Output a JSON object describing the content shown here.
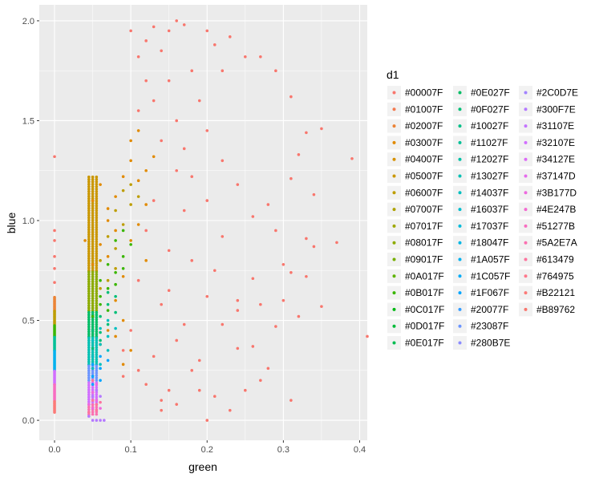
{
  "chart_data": {
    "type": "scatter",
    "title": "",
    "xlabel": "green",
    "ylabel": "blue",
    "xlim": [
      -0.02,
      0.41
    ],
    "ylim": [
      -0.1,
      2.08
    ],
    "x_ticks": [
      "0.0",
      "0.1",
      "0.2",
      "0.3",
      "0.4"
    ],
    "x_tick_values": [
      0.0,
      0.1,
      0.2,
      0.3,
      0.4
    ],
    "y_ticks": [
      "0.0",
      "0.5",
      "1.0",
      "1.5",
      "2.0"
    ],
    "y_tick_values": [
      0.0,
      0.5,
      1.0,
      1.5,
      2.0
    ],
    "grid": true,
    "panel_background": "#EBEBEB",
    "grid_color": "#FFFFFF",
    "legend": {
      "title": "d1",
      "placement": "right",
      "columns": 3,
      "entries": [
        {
          "label": "#00007F",
          "color": "#F8766D"
        },
        {
          "label": "#01007F",
          "color": "#F47A50"
        },
        {
          "label": "#02007F",
          "color": "#EB8335"
        },
        {
          "label": "#03007F",
          "color": "#E18A00"
        },
        {
          "label": "#04007F",
          "color": "#D69100"
        },
        {
          "label": "#05007F",
          "color": "#CA9700"
        },
        {
          "label": "#06007F",
          "color": "#BD9D00"
        },
        {
          "label": "#07007F",
          "color": "#AEA200"
        },
        {
          "label": "#07017F",
          "color": "#9EA700"
        },
        {
          "label": "#08017F",
          "color": "#8CAB00"
        },
        {
          "label": "#09017F",
          "color": "#77AF00"
        },
        {
          "label": "#0A017F",
          "color": "#5EB300"
        },
        {
          "label": "#0B017F",
          "color": "#39B600"
        },
        {
          "label": "#0C017F",
          "color": "#00B813"
        },
        {
          "label": "#0D017F",
          "color": "#00BA38"
        },
        {
          "label": "#0E017F",
          "color": "#00BC51"
        },
        {
          "label": "#0E027F",
          "color": "#00BD65"
        },
        {
          "label": "#0F027F",
          "color": "#00BE77"
        },
        {
          "label": "#10027F",
          "color": "#00BF87"
        },
        {
          "label": "#11027F",
          "color": "#00C097"
        },
        {
          "label": "#12027F",
          "color": "#00C0A5"
        },
        {
          "label": "#13027F",
          "color": "#00C0B3"
        },
        {
          "label": "#14037F",
          "color": "#00BFC0"
        },
        {
          "label": "#16037F",
          "color": "#00BDCD"
        },
        {
          "label": "#17037F",
          "color": "#00BAD9"
        },
        {
          "label": "#18047F",
          "color": "#00B6E4"
        },
        {
          "label": "#1A057F",
          "color": "#00B1EE"
        },
        {
          "label": "#1C057F",
          "color": "#00ABF7"
        },
        {
          "label": "#1F067F",
          "color": "#00A5FF"
        },
        {
          "label": "#20077F",
          "color": "#359DFF"
        },
        {
          "label": "#23087F",
          "color": "#6B95FF"
        },
        {
          "label": "#280B7E",
          "color": "#8B8CFF"
        },
        {
          "label": "#2C0D7E",
          "color": "#A282FF"
        },
        {
          "label": "#300F7E",
          "color": "#B57AFF"
        },
        {
          "label": "#31107E",
          "color": "#C473FF"
        },
        {
          "label": "#32107E",
          "color": "#D16EFF"
        },
        {
          "label": "#34127E",
          "color": "#DC6BF6"
        },
        {
          "label": "#37147D",
          "color": "#E56AEC"
        },
        {
          "label": "#3B177D",
          "color": "#ED69DF"
        },
        {
          "label": "#4E247B",
          "color": "#F36AD1"
        },
        {
          "label": "#51277B",
          "color": "#F86DC1"
        },
        {
          "label": "#5A2E7A",
          "color": "#FB70B0"
        },
        {
          "label": "#613479",
          "color": "#FD749E"
        },
        {
          "label": "#764975",
          "color": "#FE778B"
        },
        {
          "label": "#B22121",
          "color": "#FC7A78"
        },
        {
          "label": "#B89762",
          "color": "#F8766D"
        }
      ]
    },
    "series": [
      {
        "label": "#00007F",
        "points": [
          [
            0.0,
            1.32
          ],
          [
            0.0,
            0.95
          ],
          [
            0.0,
            0.9
          ],
          [
            0.0,
            0.82
          ],
          [
            0.0,
            0.76
          ],
          [
            0.0,
            0.69
          ],
          [
            0.09,
            0.22
          ],
          [
            0.1,
            1.95
          ],
          [
            0.11,
            1.82
          ],
          [
            0.12,
            1.9
          ],
          [
            0.13,
            1.97
          ],
          [
            0.14,
            1.85
          ],
          [
            0.15,
            1.95
          ],
          [
            0.16,
            2.0
          ],
          [
            0.17,
            1.98
          ],
          [
            0.2,
            1.95
          ],
          [
            0.21,
            1.88
          ],
          [
            0.23,
            1.92
          ],
          [
            0.22,
            1.75
          ],
          [
            0.25,
            1.82
          ],
          [
            0.27,
            1.82
          ],
          [
            0.29,
            1.75
          ],
          [
            0.31,
            1.62
          ],
          [
            0.33,
            1.44
          ],
          [
            0.35,
            1.46
          ],
          [
            0.32,
            1.33
          ],
          [
            0.31,
            1.21
          ],
          [
            0.34,
            1.13
          ],
          [
            0.39,
            1.31
          ],
          [
            0.24,
            1.18
          ],
          [
            0.26,
            1.02
          ],
          [
            0.28,
            1.08
          ],
          [
            0.33,
            0.91
          ],
          [
            0.34,
            0.87
          ],
          [
            0.37,
            0.89
          ],
          [
            0.33,
            0.72
          ],
          [
            0.3,
            0.78
          ],
          [
            0.31,
            0.74
          ],
          [
            0.35,
            0.57
          ],
          [
            0.32,
            0.52
          ],
          [
            0.27,
            0.58
          ],
          [
            0.29,
            0.47
          ],
          [
            0.24,
            0.55
          ],
          [
            0.24,
            0.36
          ],
          [
            0.26,
            0.37
          ],
          [
            0.28,
            0.26
          ],
          [
            0.25,
            0.15
          ],
          [
            0.2,
            0.0
          ],
          [
            0.21,
            0.12
          ],
          [
            0.18,
            0.25
          ],
          [
            0.17,
            0.48
          ],
          [
            0.15,
            0.65
          ],
          [
            0.2,
            0.62
          ],
          [
            0.18,
            0.8
          ],
          [
            0.22,
            0.92
          ],
          [
            0.2,
            1.1
          ],
          [
            0.18,
            1.22
          ],
          [
            0.17,
            1.36
          ],
          [
            0.16,
            1.5
          ],
          [
            0.19,
            1.6
          ],
          [
            0.15,
            1.7
          ],
          [
            0.13,
            1.6
          ],
          [
            0.12,
            1.7
          ],
          [
            0.11,
            1.55
          ],
          [
            0.14,
            1.4
          ],
          [
            0.16,
            1.25
          ],
          [
            0.13,
            1.1
          ],
          [
            0.12,
            0.95
          ],
          [
            0.15,
            0.85
          ],
          [
            0.11,
            0.7
          ],
          [
            0.14,
            0.58
          ],
          [
            0.1,
            0.45
          ],
          [
            0.13,
            0.32
          ],
          [
            0.12,
            0.18
          ],
          [
            0.09,
            0.35
          ],
          [
            0.22,
            0.48
          ],
          [
            0.26,
            0.71
          ],
          [
            0.19,
            0.3
          ],
          [
            0.23,
            0.05
          ],
          [
            0.15,
            0.15
          ],
          [
            0.16,
            0.4
          ],
          [
            0.14,
            0.1
          ],
          [
            0.24,
            0.6
          ],
          [
            0.41,
            0.42
          ],
          [
            0.31,
            0.1
          ],
          [
            0.27,
            0.2
          ],
          [
            0.22,
            1.3
          ],
          [
            0.29,
            0.95
          ],
          [
            0.18,
            1.75
          ],
          [
            0.2,
            1.45
          ],
          [
            0.14,
            0.05
          ],
          [
            0.16,
            0.08
          ],
          [
            0.19,
            0.15
          ],
          [
            0.17,
            1.05
          ],
          [
            0.21,
            0.75
          ],
          [
            0.3,
            0.6
          ],
          [
            0.11,
            0.25
          ]
        ]
      },
      {
        "label": "#03007F",
        "points": [
          [
            0.06,
            1.18
          ],
          [
            0.07,
            1.06
          ],
          [
            0.08,
            1.12
          ],
          [
            0.09,
            1.22
          ],
          [
            0.1,
            1.3
          ],
          [
            0.11,
            1.2
          ],
          [
            0.12,
            1.08
          ],
          [
            0.08,
            0.95
          ],
          [
            0.06,
            0.88
          ],
          [
            0.07,
            0.82
          ],
          [
            0.1,
            0.9
          ],
          [
            0.09,
            0.72
          ],
          [
            0.11,
            0.98
          ],
          [
            0.12,
            1.25
          ],
          [
            0.1,
            1.4
          ],
          [
            0.11,
            1.45
          ],
          [
            0.08,
            0.6
          ],
          [
            0.09,
            0.5
          ],
          [
            0.07,
            0.45
          ],
          [
            0.06,
            0.38
          ],
          [
            0.1,
            0.35
          ],
          [
            0.09,
            0.28
          ],
          [
            0.08,
            0.42
          ],
          [
            0.07,
            1.0
          ],
          [
            0.13,
            1.32
          ],
          [
            0.12,
            0.8
          ],
          [
            0.05,
            1.1
          ],
          [
            0.04,
            0.9
          ],
          [
            0.05,
            0.78
          ]
        ]
      },
      {
        "label": "#06007F",
        "points": [
          [
            0.07,
            0.92
          ],
          [
            0.08,
            0.86
          ],
          [
            0.09,
            0.98
          ],
          [
            0.06,
            0.8
          ],
          [
            0.08,
            1.05
          ],
          [
            0.09,
            1.15
          ],
          [
            0.1,
            1.08
          ],
          [
            0.07,
            0.7
          ],
          [
            0.08,
            0.76
          ],
          [
            0.1,
            1.18
          ],
          [
            0.06,
            0.66
          ],
          [
            0.11,
            1.12
          ]
        ]
      },
      {
        "label": "#0B017F",
        "points": [
          [
            0.06,
            0.58
          ],
          [
            0.07,
            0.66
          ],
          [
            0.08,
            0.74
          ],
          [
            0.09,
            0.82
          ],
          [
            0.07,
            0.55
          ],
          [
            0.06,
            0.62
          ],
          [
            0.08,
            0.9
          ],
          [
            0.09,
            0.95
          ],
          [
            0.07,
            0.78
          ],
          [
            0.05,
            0.52
          ],
          [
            0.1,
            0.88
          ],
          [
            0.08,
            0.68
          ],
          [
            0.09,
            0.76
          ],
          [
            0.06,
            0.7
          ]
        ]
      },
      {
        "label": "#0F027F",
        "points": [
          [
            0.05,
            0.45
          ],
          [
            0.06,
            0.52
          ],
          [
            0.07,
            0.58
          ],
          [
            0.08,
            0.62
          ],
          [
            0.06,
            0.4
          ],
          [
            0.07,
            0.48
          ],
          [
            0.05,
            0.36
          ],
          [
            0.08,
            0.54
          ],
          [
            0.06,
            0.44
          ],
          [
            0.07,
            0.64
          ]
        ]
      },
      {
        "label": "#14037F",
        "points": [
          [
            0.05,
            0.32
          ],
          [
            0.06,
            0.38
          ],
          [
            0.07,
            0.42
          ],
          [
            0.06,
            0.28
          ],
          [
            0.05,
            0.26
          ],
          [
            0.07,
            0.5
          ],
          [
            0.06,
            0.46
          ],
          [
            0.08,
            0.46
          ],
          [
            0.05,
            0.4
          ],
          [
            0.07,
            0.35
          ]
        ]
      },
      {
        "label": "#1F067F",
        "points": [
          [
            0.05,
            0.22
          ],
          [
            0.06,
            0.26
          ],
          [
            0.05,
            0.18
          ],
          [
            0.06,
            0.32
          ],
          [
            0.07,
            0.3
          ],
          [
            0.05,
            0.28
          ],
          [
            0.06,
            0.2
          ]
        ]
      },
      {
        "label": "#300F7E",
        "points": [
          [
            0.045,
            0.02
          ],
          [
            0.05,
            0.0
          ],
          [
            0.055,
            0.0
          ],
          [
            0.06,
            0.0
          ],
          [
            0.065,
            0.0
          ],
          [
            0.05,
            0.12
          ],
          [
            0.055,
            0.15
          ],
          [
            0.06,
            0.12
          ]
        ]
      },
      {
        "label": "#3B177D",
        "points": [
          [
            0.045,
            0.08
          ],
          [
            0.05,
            0.14
          ],
          [
            0.055,
            0.1
          ],
          [
            0.06,
            0.06
          ],
          [
            0.05,
            0.06
          ],
          [
            0.055,
            0.18
          ]
        ]
      },
      {
        "label": "#613479",
        "points": [
          [
            0.045,
            0.04
          ],
          [
            0.05,
            0.1
          ],
          [
            0.055,
            0.05
          ],
          [
            0.06,
            0.09
          ],
          [
            0.05,
            0.2
          ],
          [
            0.055,
            0.08
          ]
        ]
      }
    ],
    "zero_column": [
      {
        "color": "#EB8335",
        "range": [
          0.55,
          0.62
        ]
      },
      {
        "color": "#BD9D00",
        "range": [
          0.48,
          0.55
        ]
      },
      {
        "color": "#39B600",
        "range": [
          0.42,
          0.48
        ]
      },
      {
        "color": "#00C097",
        "range": [
          0.35,
          0.42
        ]
      },
      {
        "color": "#00B1EE",
        "range": [
          0.25,
          0.35
        ]
      },
      {
        "color": "#D16EFF",
        "range": [
          0.18,
          0.25
        ]
      },
      {
        "color": "#F86DC1",
        "range": [
          0.1,
          0.18
        ]
      },
      {
        "color": "#FC7A78",
        "range": [
          0.04,
          0.1
        ]
      }
    ],
    "base_column": [
      {
        "color": "#CA9700",
        "range": [
          0.75,
          1.22
        ]
      },
      {
        "color": "#8CAB00",
        "range": [
          0.55,
          0.75
        ]
      },
      {
        "color": "#00BD65",
        "range": [
          0.42,
          0.55
        ]
      },
      {
        "color": "#00C0B3",
        "range": [
          0.28,
          0.42
        ]
      },
      {
        "color": "#6B95FF",
        "range": [
          0.2,
          0.28
        ]
      },
      {
        "color": "#D16EFF",
        "range": [
          0.08,
          0.2
        ]
      },
      {
        "color": "#FB70B0",
        "range": [
          0.03,
          0.08
        ]
      }
    ]
  }
}
